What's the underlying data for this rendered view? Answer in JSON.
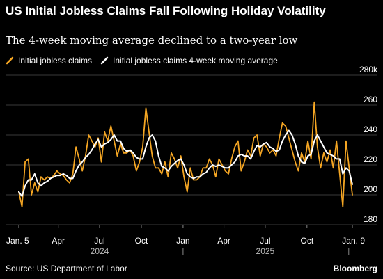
{
  "chart_data": {
    "type": "line",
    "title": "US Initial Jobless Claims Fall Following Holiday Volatility",
    "subtitle": "The 4-week moving average declined to a two-year low",
    "ylim": [
      180,
      280
    ],
    "y_ticks": [
      180,
      200,
      220,
      240,
      260,
      280
    ],
    "y_tick_labels": [
      "180",
      "200",
      "220",
      "240",
      "260",
      "280k"
    ],
    "x_start": "2024-01-05",
    "x_end": "2026-01-09",
    "x_ticks": [
      {
        "date": "2024-01-05",
        "label": "Jan. 5"
      },
      {
        "date": "2024-04-01",
        "label": "Apr"
      },
      {
        "date": "2024-07-01",
        "label": "Jul"
      },
      {
        "date": "2024-10-01",
        "label": "Oct"
      },
      {
        "date": "2025-01-01",
        "label": "Jan"
      },
      {
        "date": "2025-04-01",
        "label": "Apr"
      },
      {
        "date": "2025-07-01",
        "label": "Jul"
      },
      {
        "date": "2025-10-01",
        "label": "Oct"
      },
      {
        "date": "2026-01-09",
        "label": "Jan. 9"
      }
    ],
    "year_labels": [
      {
        "date": "2024-07-01",
        "label": "2024"
      },
      {
        "date": "2025-07-01",
        "label": "2025"
      }
    ],
    "year_dividers": [
      "2025-01-01",
      "2026-01-01"
    ],
    "grid": true,
    "legend_position": "top-left",
    "series": [
      {
        "name": "Initial jobless claims",
        "color": "#f5a623",
        "points": [
          [
            "2024-01-05",
            202
          ],
          [
            "2024-01-12",
            192
          ],
          [
            "2024-01-19",
            222
          ],
          [
            "2024-01-26",
            224
          ],
          [
            "2024-02-02",
            200
          ],
          [
            "2024-02-09",
            208
          ],
          [
            "2024-02-16",
            202
          ],
          [
            "2024-02-23",
            212
          ],
          [
            "2024-03-01",
            210
          ],
          [
            "2024-03-08",
            212
          ],
          [
            "2024-03-15",
            211
          ],
          [
            "2024-03-22",
            213
          ],
          [
            "2024-03-29",
            216
          ],
          [
            "2024-04-05",
            214
          ],
          [
            "2024-04-12",
            213
          ],
          [
            "2024-04-19",
            210
          ],
          [
            "2024-04-26",
            208
          ],
          [
            "2024-05-03",
            214
          ],
          [
            "2024-05-10",
            232
          ],
          [
            "2024-05-17",
            224
          ],
          [
            "2024-05-24",
            216
          ],
          [
            "2024-05-31",
            226
          ],
          [
            "2024-06-07",
            240
          ],
          [
            "2024-06-14",
            236
          ],
          [
            "2024-06-21",
            232
          ],
          [
            "2024-06-28",
            238
          ],
          [
            "2024-07-05",
            222
          ],
          [
            "2024-07-12",
            242
          ],
          [
            "2024-07-19",
            236
          ],
          [
            "2024-07-26",
            246
          ],
          [
            "2024-08-02",
            236
          ],
          [
            "2024-08-09",
            226
          ],
          [
            "2024-08-16",
            234
          ],
          [
            "2024-08-23",
            228
          ],
          [
            "2024-08-30",
            228
          ],
          [
            "2024-09-06",
            230
          ],
          [
            "2024-09-13",
            226
          ],
          [
            "2024-09-20",
            216
          ],
          [
            "2024-09-27",
            222
          ],
          [
            "2024-10-04",
            232
          ],
          [
            "2024-10-11",
            258
          ],
          [
            "2024-10-18",
            242
          ],
          [
            "2024-10-25",
            226
          ],
          [
            "2024-11-01",
            218
          ],
          [
            "2024-11-08",
            218
          ],
          [
            "2024-11-15",
            214
          ],
          [
            "2024-11-22",
            222
          ],
          [
            "2024-11-29",
            212
          ],
          [
            "2024-12-06",
            228
          ],
          [
            "2024-12-13",
            224
          ],
          [
            "2024-12-20",
            218
          ],
          [
            "2024-12-27",
            226
          ],
          [
            "2025-01-03",
            212
          ],
          [
            "2025-01-10",
            202
          ],
          [
            "2025-01-17",
            218
          ],
          [
            "2025-01-24",
            210
          ],
          [
            "2025-01-31",
            210
          ],
          [
            "2025-02-07",
            212
          ],
          [
            "2025-02-14",
            218
          ],
          [
            "2025-02-21",
            218
          ],
          [
            "2025-02-28",
            224
          ],
          [
            "2025-03-07",
            220
          ],
          [
            "2025-03-14",
            212
          ],
          [
            "2025-03-21",
            224
          ],
          [
            "2025-03-28",
            220
          ],
          [
            "2025-04-04",
            216
          ],
          [
            "2025-04-11",
            214
          ],
          [
            "2025-04-18",
            224
          ],
          [
            "2025-04-25",
            232
          ],
          [
            "2025-05-02",
            236
          ],
          [
            "2025-05-09",
            216
          ],
          [
            "2025-05-16",
            222
          ],
          [
            "2025-05-23",
            230
          ],
          [
            "2025-05-30",
            226
          ],
          [
            "2025-06-06",
            238
          ],
          [
            "2025-06-13",
            240
          ],
          [
            "2025-06-20",
            226
          ],
          [
            "2025-06-27",
            234
          ],
          [
            "2025-07-04",
            232
          ],
          [
            "2025-07-11",
            228
          ],
          [
            "2025-07-18",
            230
          ],
          [
            "2025-07-25",
            226
          ],
          [
            "2025-08-01",
            238
          ],
          [
            "2025-08-08",
            248
          ],
          [
            "2025-08-15",
            246
          ],
          [
            "2025-08-22",
            238
          ],
          [
            "2025-08-29",
            230
          ],
          [
            "2025-09-05",
            222
          ],
          [
            "2025-09-12",
            216
          ],
          [
            "2025-09-19",
            228
          ],
          [
            "2025-09-26",
            222
          ],
          [
            "2025-10-03",
            236
          ],
          [
            "2025-10-10",
            224
          ],
          [
            "2025-10-17",
            262
          ],
          [
            "2025-10-24",
            232
          ],
          [
            "2025-10-31",
            218
          ],
          [
            "2025-11-07",
            228
          ],
          [
            "2025-11-14",
            222
          ],
          [
            "2025-11-21",
            230
          ],
          [
            "2025-11-28",
            218
          ],
          [
            "2025-12-05",
            236
          ],
          [
            "2025-12-12",
            214
          ],
          [
            "2025-12-19",
            192
          ],
          [
            "2025-12-26",
            236
          ],
          [
            "2026-01-02",
            218
          ],
          [
            "2026-01-09",
            200
          ]
        ]
      },
      {
        "name": "Initial jobless claims 4-week moving average",
        "color": "#ffffff",
        "points": [
          [
            "2024-01-05",
            202
          ],
          [
            "2024-01-12",
            199
          ],
          [
            "2024-01-19",
            206
          ],
          [
            "2024-01-26",
            210
          ],
          [
            "2024-02-02",
            210
          ],
          [
            "2024-02-09",
            214
          ],
          [
            "2024-02-16",
            208
          ],
          [
            "2024-02-23",
            206
          ],
          [
            "2024-03-01",
            208
          ],
          [
            "2024-03-08",
            209
          ],
          [
            "2024-03-15",
            211
          ],
          [
            "2024-03-22",
            212
          ],
          [
            "2024-03-29",
            213
          ],
          [
            "2024-04-05",
            213
          ],
          [
            "2024-04-12",
            214
          ],
          [
            "2024-04-19",
            213
          ],
          [
            "2024-04-26",
            211
          ],
          [
            "2024-05-03",
            211
          ],
          [
            "2024-05-10",
            216
          ],
          [
            "2024-05-17",
            220
          ],
          [
            "2024-05-24",
            222
          ],
          [
            "2024-05-31",
            225
          ],
          [
            "2024-06-07",
            227
          ],
          [
            "2024-06-14",
            230
          ],
          [
            "2024-06-21",
            234
          ],
          [
            "2024-06-28",
            237
          ],
          [
            "2024-07-05",
            232
          ],
          [
            "2024-07-12",
            234
          ],
          [
            "2024-07-19",
            235
          ],
          [
            "2024-07-26",
            237
          ],
          [
            "2024-08-02",
            240
          ],
          [
            "2024-08-09",
            236
          ],
          [
            "2024-08-16",
            236
          ],
          [
            "2024-08-23",
            231
          ],
          [
            "2024-08-30",
            229
          ],
          [
            "2024-09-06",
            230
          ],
          [
            "2024-09-13",
            228
          ],
          [
            "2024-09-20",
            225
          ],
          [
            "2024-09-27",
            224
          ],
          [
            "2024-10-04",
            224
          ],
          [
            "2024-10-11",
            232
          ],
          [
            "2024-10-18",
            238
          ],
          [
            "2024-10-25",
            240
          ],
          [
            "2024-11-01",
            236
          ],
          [
            "2024-11-08",
            226
          ],
          [
            "2024-11-15",
            219
          ],
          [
            "2024-11-22",
            218
          ],
          [
            "2024-11-29",
            216
          ],
          [
            "2024-12-06",
            219
          ],
          [
            "2024-12-13",
            221
          ],
          [
            "2024-12-20",
            223
          ],
          [
            "2024-12-27",
            224
          ],
          [
            "2025-01-03",
            220
          ],
          [
            "2025-01-10",
            214
          ],
          [
            "2025-01-17",
            212
          ],
          [
            "2025-01-24",
            211
          ],
          [
            "2025-01-31",
            212
          ],
          [
            "2025-02-07",
            212
          ],
          [
            "2025-02-14",
            214
          ],
          [
            "2025-02-21",
            215
          ],
          [
            "2025-02-28",
            218
          ],
          [
            "2025-03-07",
            220
          ],
          [
            "2025-03-14",
            219
          ],
          [
            "2025-03-21",
            220
          ],
          [
            "2025-03-28",
            219
          ],
          [
            "2025-04-04",
            218
          ],
          [
            "2025-04-11",
            218
          ],
          [
            "2025-04-18",
            220
          ],
          [
            "2025-04-25",
            222
          ],
          [
            "2025-05-02",
            226
          ],
          [
            "2025-05-09",
            227
          ],
          [
            "2025-05-16",
            226
          ],
          [
            "2025-05-23",
            226
          ],
          [
            "2025-05-30",
            224
          ],
          [
            "2025-06-06",
            229
          ],
          [
            "2025-06-13",
            233
          ],
          [
            "2025-06-20",
            232
          ],
          [
            "2025-06-27",
            234
          ],
          [
            "2025-07-04",
            235
          ],
          [
            "2025-07-11",
            232
          ],
          [
            "2025-07-18",
            231
          ],
          [
            "2025-07-25",
            229
          ],
          [
            "2025-08-01",
            230
          ],
          [
            "2025-08-08",
            236
          ],
          [
            "2025-08-15",
            240
          ],
          [
            "2025-08-22",
            243
          ],
          [
            "2025-08-29",
            240
          ],
          [
            "2025-09-05",
            234
          ],
          [
            "2025-09-12",
            226
          ],
          [
            "2025-09-19",
            222
          ],
          [
            "2025-09-26",
            221
          ],
          [
            "2025-10-03",
            226
          ],
          [
            "2025-10-10",
            227
          ],
          [
            "2025-10-17",
            236
          ],
          [
            "2025-10-24",
            240
          ],
          [
            "2025-10-31",
            236
          ],
          [
            "2025-11-07",
            232
          ],
          [
            "2025-11-14",
            228
          ],
          [
            "2025-11-21",
            227
          ],
          [
            "2025-11-28",
            226
          ],
          [
            "2025-12-05",
            224
          ],
          [
            "2025-12-12",
            224
          ],
          [
            "2025-12-19",
            214
          ],
          [
            "2025-12-26",
            218
          ],
          [
            "2026-01-02",
            216
          ],
          [
            "2026-01-09",
            207
          ]
        ]
      }
    ]
  },
  "legend": {
    "items": [
      {
        "label": "Initial jobless claims",
        "color": "#f5a623"
      },
      {
        "label": "Initial jobless claims 4-week moving average",
        "color": "#ffffff"
      }
    ]
  },
  "footer": {
    "source": "Source: US Department of Labor",
    "brand": "Bloomberg"
  }
}
